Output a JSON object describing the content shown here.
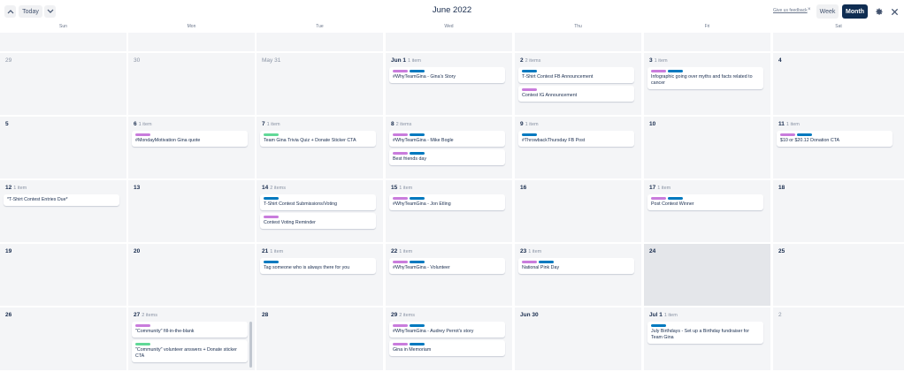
{
  "header": {
    "today_label": "Today",
    "prev_glyph": "^",
    "next_glyph": "v",
    "title": "June 2022",
    "feedback_label": "Give us feedback",
    "feedback_close": "×",
    "week_label": "Week",
    "month_label": "Month",
    "selected_view": "Month"
  },
  "label_colors": {
    "purple": "#c97cdc",
    "blue": "#0079bf",
    "green": "#61d897"
  },
  "weekdays": [
    "Sun",
    "Mon",
    "Tue",
    "Wed",
    "Thu",
    "Fri",
    "Sat"
  ],
  "weeks": [
    {
      "days": [
        {
          "day": "",
          "count": "",
          "cards": []
        },
        {
          "day": "",
          "count": "",
          "cards": []
        },
        {
          "day": "",
          "count": "",
          "cards": []
        },
        {
          "day": "",
          "count": "",
          "cards": []
        },
        {
          "day": "",
          "count": "",
          "cards": []
        },
        {
          "day": "",
          "count": "",
          "cards": []
        },
        {
          "day": "",
          "count": "",
          "cards": []
        }
      ]
    },
    {
      "days": [
        {
          "day": "29",
          "outside": true,
          "count": "",
          "cards": []
        },
        {
          "day": "30",
          "outside": true,
          "count": "",
          "cards": []
        },
        {
          "day": "May 31",
          "outside": true,
          "count": "",
          "cards": []
        },
        {
          "day": "Jun 1",
          "count": "1 item",
          "cards": [
            {
              "labels": [
                "purple",
                "blue"
              ],
              "title": "#WhyTeamGina - Gina's Story"
            }
          ]
        },
        {
          "day": "2",
          "count": "2 items",
          "cards": [
            {
              "labels": [
                "blue"
              ],
              "title": "T-Shirt Contest FB Announcement"
            },
            {
              "labels": [
                "purple"
              ],
              "title": "Contest IG Announcement"
            }
          ]
        },
        {
          "day": "3",
          "count": "1 item",
          "cards": [
            {
              "labels": [
                "purple",
                "blue"
              ],
              "title": "Infographic going over myths and facts related to cancer"
            }
          ]
        },
        {
          "day": "4",
          "count": "",
          "cards": []
        }
      ]
    },
    {
      "days": [
        {
          "day": "5",
          "count": "",
          "cards": []
        },
        {
          "day": "6",
          "count": "1 item",
          "cards": [
            {
              "labels": [
                "purple"
              ],
              "title": "#MondayMotivation Gina quote"
            }
          ]
        },
        {
          "day": "7",
          "count": "1 item",
          "cards": [
            {
              "labels": [
                "green"
              ],
              "title": "Team Gina Trivia Quiz + Donate Sticker CTA"
            }
          ]
        },
        {
          "day": "8",
          "count": "2 items",
          "cards": [
            {
              "labels": [
                "purple",
                "blue"
              ],
              "title": "#WhyTeamGina - Mike Bogle"
            },
            {
              "labels": [
                "purple",
                "blue"
              ],
              "title": "Best friends day"
            }
          ]
        },
        {
          "day": "9",
          "count": "1 item",
          "cards": [
            {
              "labels": [
                "blue"
              ],
              "title": "#ThrowbackThursday FB Post"
            }
          ]
        },
        {
          "day": "10",
          "count": "",
          "cards": []
        },
        {
          "day": "11",
          "count": "1 item",
          "cards": [
            {
              "labels": [
                "purple",
                "blue"
              ],
              "title": "$10 or $20.12 Donation CTA"
            }
          ]
        }
      ]
    },
    {
      "days": [
        {
          "day": "12",
          "count": "1 item",
          "cards": [
            {
              "labels": [],
              "title": "*T-Shirt Contest Entries Due*"
            }
          ]
        },
        {
          "day": "13",
          "count": "",
          "cards": []
        },
        {
          "day": "14",
          "count": "2 items",
          "cards": [
            {
              "labels": [
                "blue"
              ],
              "title": "T-Shirt Contest Submissions/Voting"
            },
            {
              "labels": [
                "purple"
              ],
              "title": "Contest Voting Reminder"
            }
          ]
        },
        {
          "day": "15",
          "count": "1 item",
          "cards": [
            {
              "labels": [
                "purple",
                "blue"
              ],
              "title": "#WhyTeamGina - Jon Etling"
            }
          ]
        },
        {
          "day": "16",
          "count": "",
          "cards": []
        },
        {
          "day": "17",
          "count": "1 item",
          "cards": [
            {
              "labels": [
                "purple",
                "blue"
              ],
              "title": "Post Contest Winner"
            }
          ]
        },
        {
          "day": "18",
          "count": "",
          "cards": []
        }
      ]
    },
    {
      "days": [
        {
          "day": "19",
          "count": "",
          "cards": []
        },
        {
          "day": "20",
          "count": "",
          "cards": []
        },
        {
          "day": "21",
          "count": "1 item",
          "cards": [
            {
              "labels": [
                "blue"
              ],
              "title": "Tag someone who is always there for you"
            }
          ]
        },
        {
          "day": "22",
          "count": "1 item",
          "cards": [
            {
              "labels": [
                "purple",
                "blue"
              ],
              "title": "#WhyTeamGina - Volunteer"
            }
          ]
        },
        {
          "day": "23",
          "count": "1 item",
          "cards": [
            {
              "labels": [
                "purple",
                "blue"
              ],
              "title": "National Pink Day"
            }
          ]
        },
        {
          "day": "24",
          "highlight": true,
          "count": "",
          "cards": []
        },
        {
          "day": "25",
          "count": "",
          "cards": []
        }
      ]
    },
    {
      "days": [
        {
          "day": "26",
          "count": "",
          "cards": []
        },
        {
          "day": "27",
          "count": "2 items",
          "cards": [
            {
              "labels": [
                "purple"
              ],
              "title": "\"Community\" fill-in-the-blank"
            },
            {
              "labels": [
                "green"
              ],
              "title": "\"Community\" volunteer answers + Donate sticker CTA"
            }
          ]
        },
        {
          "day": "28",
          "count": "",
          "cards": []
        },
        {
          "day": "29",
          "count": "2 items",
          "cards": [
            {
              "labels": [
                "purple",
                "blue"
              ],
              "title": "#WhyTeamGina - Audrey Perrot's story"
            },
            {
              "labels": [
                "purple",
                "blue"
              ],
              "title": "Gina in Memoriam"
            }
          ]
        },
        {
          "day": "Jun 30",
          "count": "",
          "cards": []
        },
        {
          "day": "Jul 1",
          "count": "1 item",
          "cards": [
            {
              "labels": [
                "blue"
              ],
              "title": "July Birthdays - Set up a Birthday fundraiser for Team Gina"
            }
          ]
        },
        {
          "day": "2",
          "outside": true,
          "count": "",
          "cards": []
        }
      ]
    }
  ]
}
